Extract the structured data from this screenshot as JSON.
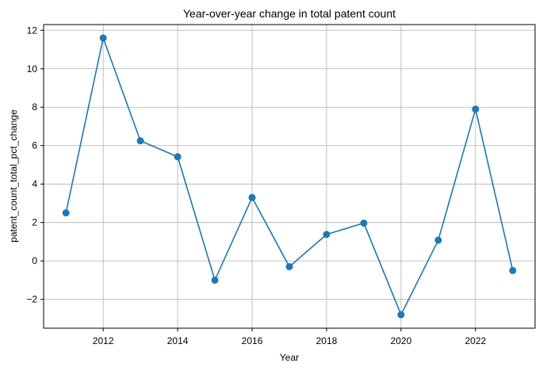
{
  "chart_data": {
    "type": "line",
    "title": "Year-over-year change in total patent count",
    "xlabel": "Year",
    "ylabel": "patent_count_total_pct_change",
    "x": [
      2011,
      2012,
      2013,
      2014,
      2015,
      2016,
      2017,
      2018,
      2019,
      2020,
      2021,
      2022,
      2023
    ],
    "series": [
      {
        "values": [
          2.5,
          11.6,
          6.25,
          5.42,
          -1.0,
          3.3,
          -0.3,
          1.38,
          1.97,
          -2.8,
          1.08,
          7.9,
          -0.5
        ]
      }
    ],
    "xlim": [
      2010.4,
      2023.6
    ],
    "ylim": [
      -3.5,
      12.3
    ],
    "x_ticks": [
      2012,
      2014,
      2016,
      2018,
      2020,
      2022
    ],
    "y_ticks": [
      -2,
      0,
      2,
      4,
      6,
      8,
      10,
      12
    ],
    "x_tick_labels": [
      "2012",
      "2014",
      "2016",
      "2018",
      "2020",
      "2022"
    ],
    "y_tick_labels": [
      "−2",
      "0",
      "2",
      "4",
      "6",
      "8",
      "10",
      "12"
    ],
    "grid": true,
    "markers": true,
    "line_color": "#1f77b4",
    "grid_color": "#b0b0b0"
  }
}
